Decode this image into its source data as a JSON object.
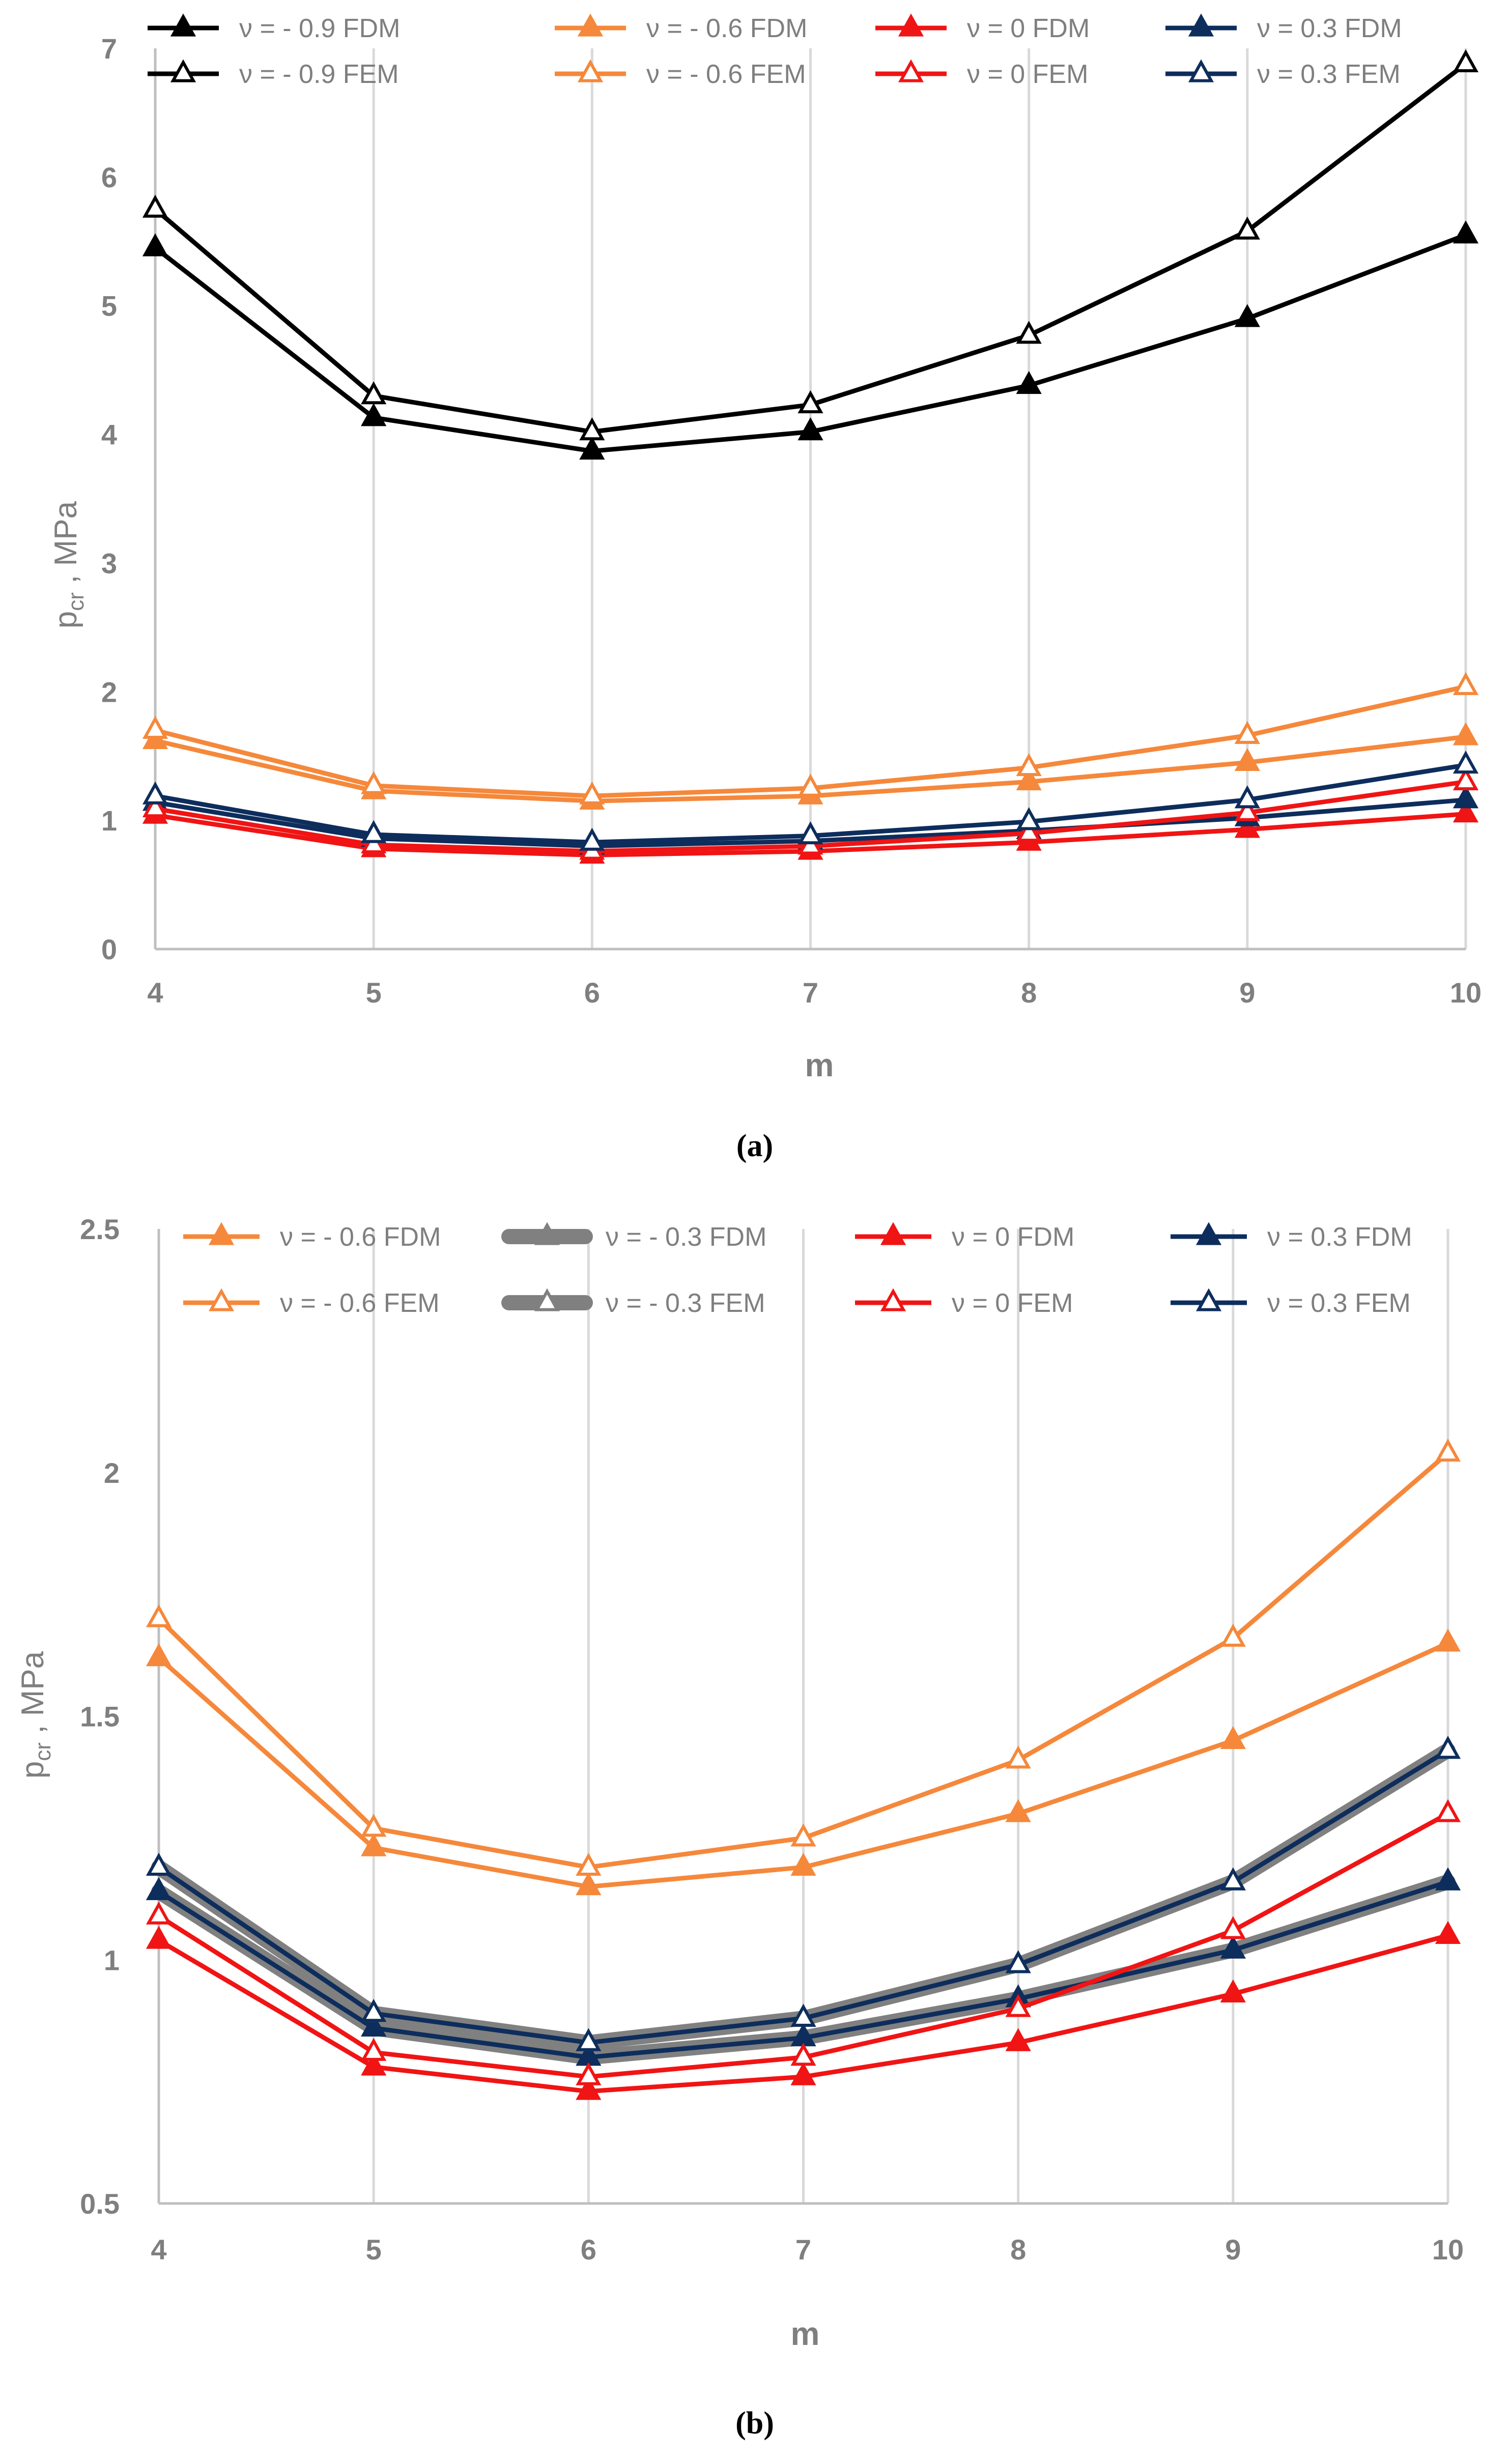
{
  "chart_data": [
    {
      "type": "line",
      "panel": "a",
      "caption_label": "(a)",
      "xlabel": "m",
      "ylabel_main": "p",
      "ylabel_sub": "cr",
      "ylabel_rest": " , MPa",
      "x": [
        4,
        5,
        6,
        7,
        8,
        9,
        10
      ],
      "xlim": [
        4,
        10
      ],
      "ylim": [
        0,
        7
      ],
      "yticks": [
        0,
        1,
        2,
        3,
        4,
        5,
        6,
        7
      ],
      "ytick_labels": [
        "0",
        "1",
        "2",
        "3",
        "4",
        "5",
        "6",
        "7"
      ],
      "xtick_labels": [
        "4",
        "5",
        "6",
        "7",
        "8",
        "9",
        "10"
      ],
      "grid": "vertical",
      "legend_position": "top",
      "series": [
        {
          "name": "ν = - 0.9 FDM",
          "color": "#000000",
          "marker": "filled",
          "values": [
            5.45,
            4.13,
            3.87,
            4.02,
            4.38,
            4.9,
            5.55
          ]
        },
        {
          "name": "ν = - 0.6 FDM",
          "color": "#f5883b",
          "marker": "filled",
          "values": [
            1.62,
            1.23,
            1.15,
            1.19,
            1.3,
            1.45,
            1.65
          ]
        },
        {
          "name": "ν = 0 FDM",
          "color": "#f01414",
          "marker": "filled",
          "values": [
            1.04,
            0.78,
            0.73,
            0.76,
            0.83,
            0.93,
            1.05
          ]
        },
        {
          "name": "ν = 0.3 FDM",
          "color": "#0d2d5c",
          "marker": "filled",
          "values": [
            1.14,
            0.86,
            0.8,
            0.84,
            0.92,
            1.02,
            1.16
          ]
        },
        {
          "name": "ν = - 0.9 FEM",
          "color": "#000000",
          "marker": "open",
          "values": [
            5.75,
            4.3,
            4.02,
            4.23,
            4.77,
            5.58,
            6.88
          ]
        },
        {
          "name": "ν = - 0.6 FEM",
          "color": "#f5883b",
          "marker": "open",
          "values": [
            1.7,
            1.27,
            1.19,
            1.25,
            1.41,
            1.66,
            2.04
          ]
        },
        {
          "name": "ν = 0 FEM",
          "color": "#f01414",
          "marker": "open",
          "values": [
            1.09,
            0.81,
            0.76,
            0.8,
            0.9,
            1.06,
            1.3
          ]
        },
        {
          "name": "ν = 0.3 FEM",
          "color": "#0d2d5c",
          "marker": "open",
          "values": [
            1.19,
            0.89,
            0.83,
            0.88,
            0.99,
            1.16,
            1.43
          ]
        }
      ]
    },
    {
      "type": "line",
      "panel": "b",
      "caption_label": "(b)",
      "xlabel": "m",
      "ylabel_main": "p",
      "ylabel_sub": "cr",
      "ylabel_rest": " , MPa",
      "x": [
        4,
        5,
        6,
        7,
        8,
        9,
        10
      ],
      "xlim": [
        4,
        10
      ],
      "ylim": [
        0.5,
        2.5
      ],
      "yticks": [
        0.5,
        1,
        1.5,
        2,
        2.5
      ],
      "ytick_labels": [
        "0.5",
        "1",
        "1.5",
        "2",
        "2.5"
      ],
      "xtick_labels": [
        "4",
        "5",
        "6",
        "7",
        "8",
        "9",
        "10"
      ],
      "grid": "vertical",
      "legend_position": "top",
      "series": [
        {
          "name": "ν = - 0.6 FDM",
          "color": "#f5883b",
          "marker": "filled",
          "values": [
            1.62,
            1.23,
            1.15,
            1.19,
            1.3,
            1.45,
            1.65
          ]
        },
        {
          "name": "ν = - 0.3 FDM",
          "color": "#808080",
          "marker": "filled",
          "thick": true,
          "values": [
            1.14,
            0.86,
            0.8,
            0.84,
            0.92,
            1.02,
            1.16
          ]
        },
        {
          "name": "ν = 0 FDM",
          "color": "#f01414",
          "marker": "filled",
          "values": [
            1.04,
            0.78,
            0.73,
            0.76,
            0.83,
            0.93,
            1.05
          ]
        },
        {
          "name": "ν = 0.3 FDM",
          "color": "#0d2d5c",
          "marker": "filled",
          "values": [
            1.14,
            0.86,
            0.8,
            0.84,
            0.92,
            1.02,
            1.16
          ]
        },
        {
          "name": "ν = - 0.6 FEM",
          "color": "#f5883b",
          "marker": "open",
          "values": [
            1.7,
            1.27,
            1.19,
            1.25,
            1.41,
            1.66,
            2.04
          ]
        },
        {
          "name": "ν = - 0.3 FEM",
          "color": "#808080",
          "marker": "open",
          "thick": true,
          "values": [
            1.19,
            0.89,
            0.83,
            0.88,
            0.99,
            1.16,
            1.43
          ]
        },
        {
          "name": "ν = 0 FEM",
          "color": "#f01414",
          "marker": "open",
          "values": [
            1.09,
            0.81,
            0.76,
            0.8,
            0.9,
            1.06,
            1.3
          ]
        },
        {
          "name": "ν = 0.3 FEM",
          "color": "#0d2d5c",
          "marker": "open",
          "values": [
            1.19,
            0.89,
            0.83,
            0.88,
            0.99,
            1.16,
            1.43
          ]
        }
      ]
    }
  ]
}
